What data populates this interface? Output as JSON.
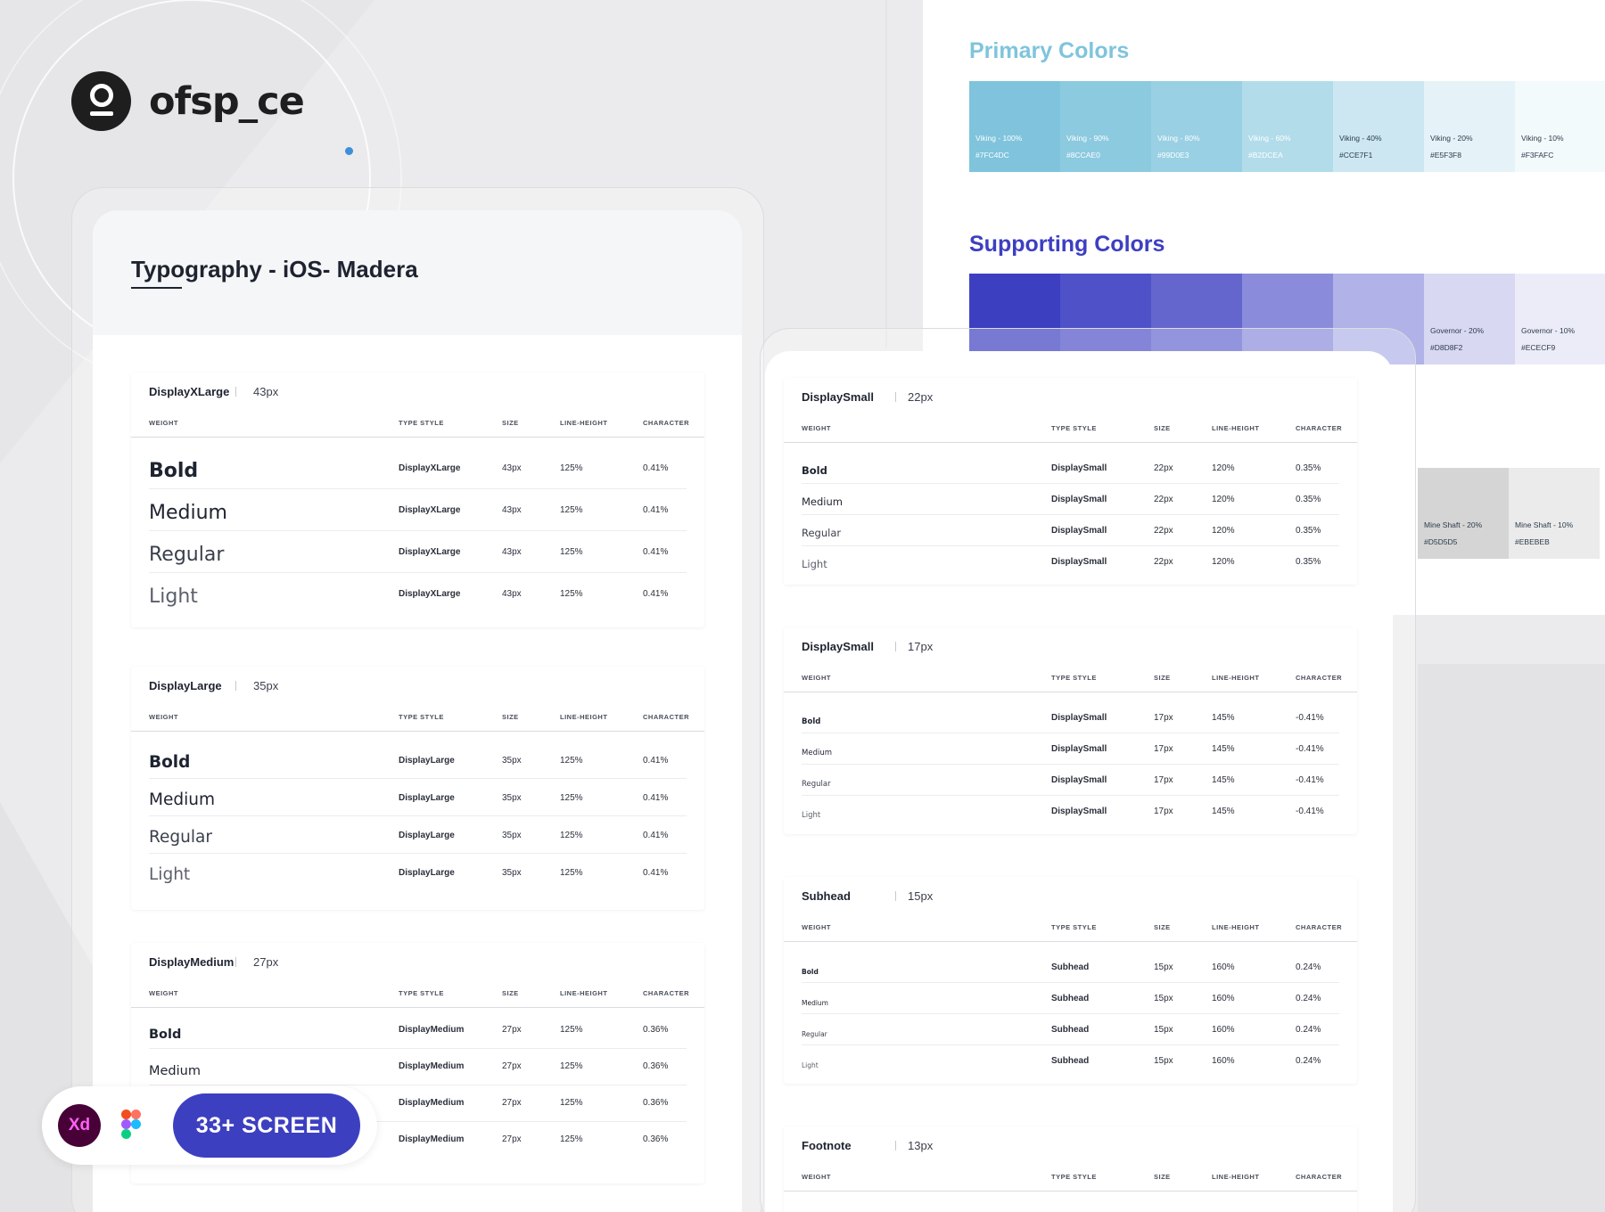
{
  "brand": {
    "name": "ofsp_ce"
  },
  "colors": {
    "primary_title": "Primary Colors",
    "primary_title_color": "#7fc4dc",
    "primary": [
      {
        "name": "Viking - 100%",
        "hex": "#7FC4DC"
      },
      {
        "name": "Viking - 90%",
        "hex": "#8CCAE0"
      },
      {
        "name": "Viking - 80%",
        "hex": "#99D0E3"
      },
      {
        "name": "Viking - 60%",
        "hex": "#B2DCEA"
      },
      {
        "name": "Viking - 40%",
        "hex": "#CCE7F1"
      },
      {
        "name": "Viking - 20%",
        "hex": "#E5F3F8"
      },
      {
        "name": "Viking - 10%",
        "hex": "#F3FAFC"
      }
    ],
    "supporting_title": "Supporting Colors",
    "supporting_title_color": "#3d3fc1",
    "supporting": [
      {
        "name": "Governor - 20%",
        "hex": "#D8D8F2"
      },
      {
        "name": "Governor - 10%",
        "hex": "#ECECF9"
      }
    ],
    "supporting_fills": [
      "#3d3fc1",
      "#4f51c8",
      "#6466ce",
      "#8a8cdb",
      "#b1b2e7"
    ],
    "neutral": [
      {
        "name": "Mine Shaft - 20%",
        "hex": "#D5D5D5"
      },
      {
        "name": "Mine Shaft - 10%",
        "hex": "#EBEBEB"
      }
    ]
  },
  "typography": {
    "title": "Typography - iOS- Madera",
    "columns": {
      "weight": "WEIGHT",
      "type_style": "TYPE STYLE",
      "size": "SIZE",
      "line_height": "LINE-HEIGHT",
      "character": "CHARACTER"
    },
    "left_sections": [
      {
        "name": "DisplayXLarge",
        "size": "43px",
        "rows": [
          {
            "weight": "Bold",
            "style": "DisplayXLarge",
            "size": "43px",
            "lh": "125%",
            "ch": "0.41%"
          },
          {
            "weight": "Medium",
            "style": "DisplayXLarge",
            "size": "43px",
            "lh": "125%",
            "ch": "0.41%"
          },
          {
            "weight": "Regular",
            "style": "DisplayXLarge",
            "size": "43px",
            "lh": "125%",
            "ch": "0.41%"
          },
          {
            "weight": "Light",
            "style": "DisplayXLarge",
            "size": "43px",
            "lh": "125%",
            "ch": "0.41%"
          }
        ]
      },
      {
        "name": "DisplayLarge",
        "size": "35px",
        "rows": [
          {
            "weight": "Bold",
            "style": "DisplayLarge",
            "size": "35px",
            "lh": "125%",
            "ch": "0.41%"
          },
          {
            "weight": "Medium",
            "style": "DisplayLarge",
            "size": "35px",
            "lh": "125%",
            "ch": "0.41%"
          },
          {
            "weight": "Regular",
            "style": "DisplayLarge",
            "size": "35px",
            "lh": "125%",
            "ch": "0.41%"
          },
          {
            "weight": "Light",
            "style": "DisplayLarge",
            "size": "35px",
            "lh": "125%",
            "ch": "0.41%"
          }
        ]
      },
      {
        "name": "DisplayMedium",
        "size": "27px",
        "rows": [
          {
            "weight": "Bold",
            "style": "DisplayMedium",
            "size": "27px",
            "lh": "125%",
            "ch": "0.36%"
          },
          {
            "weight": "Medium",
            "style": "DisplayMedium",
            "size": "27px",
            "lh": "125%",
            "ch": "0.36%"
          },
          {
            "weight": "",
            "style": "DisplayMedium",
            "size": "27px",
            "lh": "125%",
            "ch": "0.36%"
          },
          {
            "weight": "",
            "style": "DisplayMedium",
            "size": "27px",
            "lh": "125%",
            "ch": "0.36%"
          }
        ]
      }
    ],
    "right_sections": [
      {
        "name": "DisplaySmall",
        "size": "22px",
        "rows": [
          {
            "weight": "Bold",
            "style": "DisplaySmall",
            "size": "22px",
            "lh": "120%",
            "ch": "0.35%"
          },
          {
            "weight": "Medium",
            "style": "DisplaySmall",
            "size": "22px",
            "lh": "120%",
            "ch": "0.35%"
          },
          {
            "weight": "Regular",
            "style": "DisplaySmall",
            "size": "22px",
            "lh": "120%",
            "ch": "0.35%"
          },
          {
            "weight": "Light",
            "style": "DisplaySmall",
            "size": "22px",
            "lh": "120%",
            "ch": "0.35%"
          }
        ]
      },
      {
        "name": "DisplaySmall",
        "size": "17px",
        "rows": [
          {
            "weight": "Bold",
            "style": "DisplaySmall",
            "size": "17px",
            "lh": "145%",
            "ch": "-0.41%"
          },
          {
            "weight": "Medium",
            "style": "DisplaySmall",
            "size": "17px",
            "lh": "145%",
            "ch": "-0.41%"
          },
          {
            "weight": "Regular",
            "style": "DisplaySmall",
            "size": "17px",
            "lh": "145%",
            "ch": "-0.41%"
          },
          {
            "weight": "Light",
            "style": "DisplaySmall",
            "size": "17px",
            "lh": "145%",
            "ch": "-0.41%"
          }
        ]
      },
      {
        "name": "Subhead",
        "size": "15px",
        "rows": [
          {
            "weight": "Bold",
            "style": "Subhead",
            "size": "15px",
            "lh": "160%",
            "ch": "0.24%"
          },
          {
            "weight": "Medium",
            "style": "Subhead",
            "size": "15px",
            "lh": "160%",
            "ch": "0.24%"
          },
          {
            "weight": "Regular",
            "style": "Subhead",
            "size": "15px",
            "lh": "160%",
            "ch": "0.24%"
          },
          {
            "weight": "Light",
            "style": "Subhead",
            "size": "15px",
            "lh": "160%",
            "ch": "0.24%"
          }
        ]
      },
      {
        "name": "Footnote",
        "size": "13px",
        "rows": []
      }
    ]
  },
  "badge": {
    "xd": "Xd",
    "cta": "33+ SCREEN"
  }
}
